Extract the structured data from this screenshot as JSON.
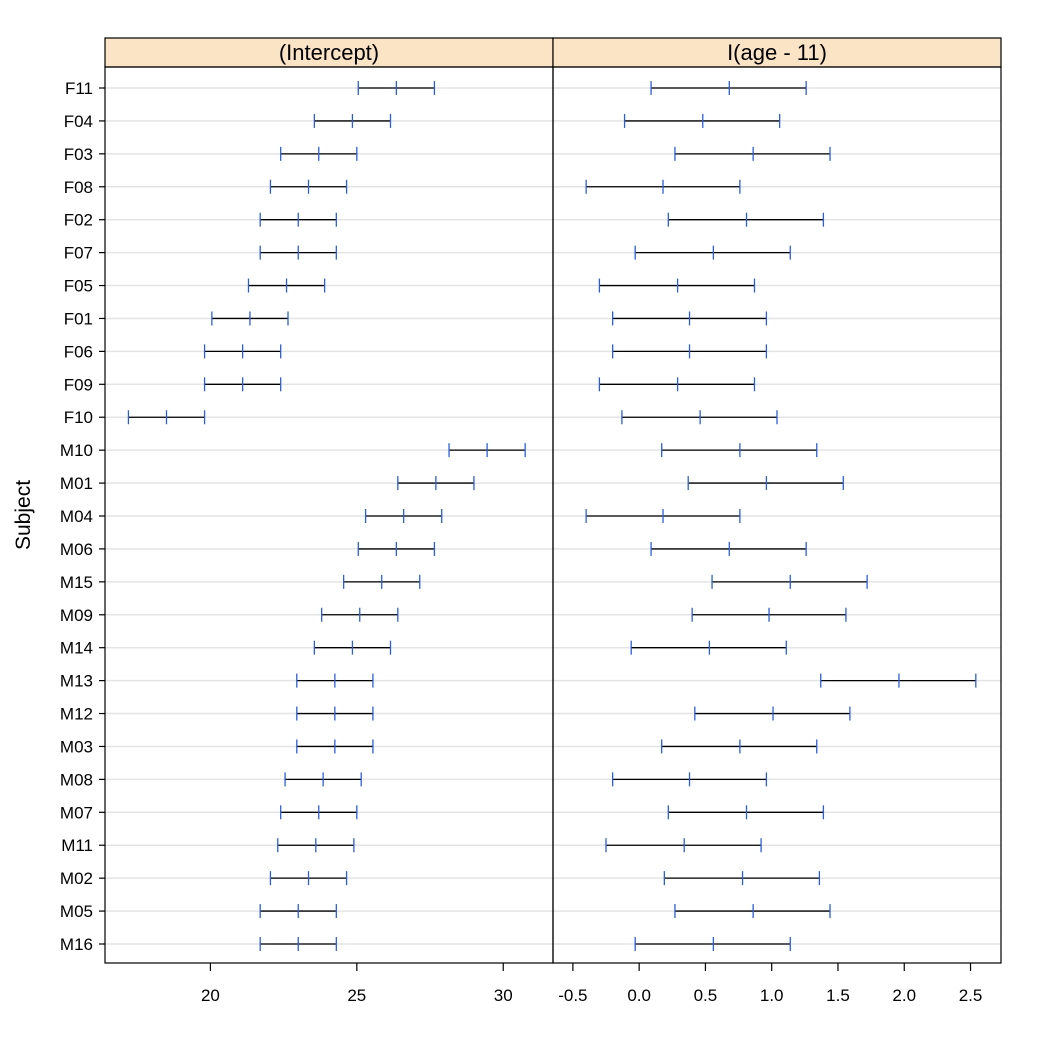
{
  "chart_data": {
    "type": "dotplot-intervals",
    "ylabel": "Subject",
    "subjects": [
      "F11",
      "F04",
      "F03",
      "F08",
      "F02",
      "F07",
      "F05",
      "F01",
      "F06",
      "F09",
      "F10",
      "M10",
      "M01",
      "M04",
      "M06",
      "M15",
      "M09",
      "M14",
      "M13",
      "M12",
      "M03",
      "M08",
      "M07",
      "M11",
      "M02",
      "M05",
      "M16"
    ],
    "panels": [
      {
        "strip_label": "(Intercept)",
        "xlim": [
          16.4,
          31.7
        ],
        "ticks": [
          20,
          25,
          30
        ],
        "tick_labels": [
          "20",
          "25",
          "30"
        ],
        "intervals": [
          {
            "subject": "F11",
            "lower": 25.05,
            "estimate": 26.35,
            "upper": 27.65
          },
          {
            "subject": "F04",
            "lower": 23.55,
            "estimate": 24.85,
            "upper": 26.15
          },
          {
            "subject": "F03",
            "lower": 22.4,
            "estimate": 23.7,
            "upper": 25.0
          },
          {
            "subject": "F08",
            "lower": 22.05,
            "estimate": 23.35,
            "upper": 24.65
          },
          {
            "subject": "F02",
            "lower": 21.7,
            "estimate": 23.0,
            "upper": 24.3
          },
          {
            "subject": "F07",
            "lower": 21.7,
            "estimate": 23.0,
            "upper": 24.3
          },
          {
            "subject": "F05",
            "lower": 21.3,
            "estimate": 22.6,
            "upper": 23.9
          },
          {
            "subject": "F01",
            "lower": 20.05,
            "estimate": 21.35,
            "upper": 22.65
          },
          {
            "subject": "F06",
            "lower": 19.8,
            "estimate": 21.1,
            "upper": 22.4
          },
          {
            "subject": "F09",
            "lower": 19.8,
            "estimate": 21.1,
            "upper": 22.4
          },
          {
            "subject": "F10",
            "lower": 17.2,
            "estimate": 18.5,
            "upper": 19.8
          },
          {
            "subject": "M10",
            "lower": 28.15,
            "estimate": 29.45,
            "upper": 30.75
          },
          {
            "subject": "M01",
            "lower": 26.4,
            "estimate": 27.7,
            "upper": 29.0
          },
          {
            "subject": "M04",
            "lower": 25.3,
            "estimate": 26.6,
            "upper": 27.9
          },
          {
            "subject": "M06",
            "lower": 25.05,
            "estimate": 26.35,
            "upper": 27.65
          },
          {
            "subject": "M15",
            "lower": 24.55,
            "estimate": 25.85,
            "upper": 27.15
          },
          {
            "subject": "M09",
            "lower": 23.8,
            "estimate": 25.1,
            "upper": 26.4
          },
          {
            "subject": "M14",
            "lower": 23.55,
            "estimate": 24.85,
            "upper": 26.15
          },
          {
            "subject": "M13",
            "lower": 22.95,
            "estimate": 24.25,
            "upper": 25.55
          },
          {
            "subject": "M12",
            "lower": 22.95,
            "estimate": 24.25,
            "upper": 25.55
          },
          {
            "subject": "M03",
            "lower": 22.95,
            "estimate": 24.25,
            "upper": 25.55
          },
          {
            "subject": "M08",
            "lower": 22.55,
            "estimate": 23.85,
            "upper": 25.15
          },
          {
            "subject": "M07",
            "lower": 22.4,
            "estimate": 23.7,
            "upper": 25.0
          },
          {
            "subject": "M11",
            "lower": 22.3,
            "estimate": 23.6,
            "upper": 24.9
          },
          {
            "subject": "M02",
            "lower": 22.05,
            "estimate": 23.35,
            "upper": 24.65
          },
          {
            "subject": "M05",
            "lower": 21.7,
            "estimate": 23.0,
            "upper": 24.3
          },
          {
            "subject": "M16",
            "lower": 21.7,
            "estimate": 23.0,
            "upper": 24.3
          }
        ]
      },
      {
        "strip_label": "I(age - 11)",
        "xlim": [
          -0.65,
          2.73
        ],
        "ticks": [
          -0.5,
          0.0,
          0.5,
          1.0,
          1.5,
          2.0,
          2.5
        ],
        "tick_labels": [
          "-0.5",
          "0.0",
          "0.5",
          "1.0",
          "1.5",
          "2.0",
          "2.5"
        ],
        "intervals": [
          {
            "subject": "F11",
            "lower": 0.09,
            "estimate": 0.68,
            "upper": 1.26
          },
          {
            "subject": "F04",
            "lower": -0.11,
            "estimate": 0.48,
            "upper": 1.06
          },
          {
            "subject": "F03",
            "lower": 0.27,
            "estimate": 0.86,
            "upper": 1.44
          },
          {
            "subject": "F08",
            "lower": -0.4,
            "estimate": 0.18,
            "upper": 0.76
          },
          {
            "subject": "F02",
            "lower": 0.22,
            "estimate": 0.81,
            "upper": 1.39
          },
          {
            "subject": "F07",
            "lower": -0.03,
            "estimate": 0.56,
            "upper": 1.14
          },
          {
            "subject": "F05",
            "lower": -0.3,
            "estimate": 0.29,
            "upper": 0.87
          },
          {
            "subject": "F01",
            "lower": -0.2,
            "estimate": 0.38,
            "upper": 0.96
          },
          {
            "subject": "F06",
            "lower": -0.2,
            "estimate": 0.38,
            "upper": 0.96
          },
          {
            "subject": "F09",
            "lower": -0.3,
            "estimate": 0.29,
            "upper": 0.87
          },
          {
            "subject": "F10",
            "lower": -0.13,
            "estimate": 0.46,
            "upper": 1.04
          },
          {
            "subject": "M10",
            "lower": 0.17,
            "estimate": 0.76,
            "upper": 1.34
          },
          {
            "subject": "M01",
            "lower": 0.37,
            "estimate": 0.96,
            "upper": 1.54
          },
          {
            "subject": "M04",
            "lower": -0.4,
            "estimate": 0.18,
            "upper": 0.76
          },
          {
            "subject": "M06",
            "lower": 0.09,
            "estimate": 0.68,
            "upper": 1.26
          },
          {
            "subject": "M15",
            "lower": 0.55,
            "estimate": 1.14,
            "upper": 1.72
          },
          {
            "subject": "M09",
            "lower": 0.4,
            "estimate": 0.98,
            "upper": 1.56
          },
          {
            "subject": "M14",
            "lower": -0.06,
            "estimate": 0.53,
            "upper": 1.11
          },
          {
            "subject": "M13",
            "lower": 1.37,
            "estimate": 1.96,
            "upper": 2.54
          },
          {
            "subject": "M12",
            "lower": 0.42,
            "estimate": 1.01,
            "upper": 1.59
          },
          {
            "subject": "M03",
            "lower": 0.17,
            "estimate": 0.76,
            "upper": 1.34
          },
          {
            "subject": "M08",
            "lower": -0.2,
            "estimate": 0.38,
            "upper": 0.96
          },
          {
            "subject": "M07",
            "lower": 0.22,
            "estimate": 0.81,
            "upper": 1.39
          },
          {
            "subject": "M11",
            "lower": -0.25,
            "estimate": 0.34,
            "upper": 0.92
          },
          {
            "subject": "M02",
            "lower": 0.19,
            "estimate": 0.78,
            "upper": 1.36
          },
          {
            "subject": "M05",
            "lower": 0.27,
            "estimate": 0.86,
            "upper": 1.44
          },
          {
            "subject": "M16",
            "lower": -0.03,
            "estimate": 0.56,
            "upper": 1.14
          }
        ]
      }
    ],
    "grid": true,
    "colors": {
      "strip_bg": "#fbe3c6",
      "interval_line": "#000000",
      "interval_ticks": "#2c5fd6",
      "gridline": "#e4e4e4",
      "frame": "#000000"
    }
  }
}
